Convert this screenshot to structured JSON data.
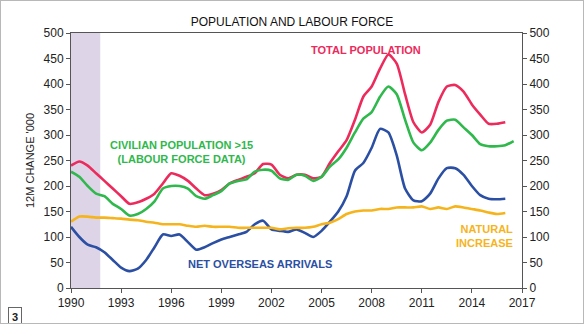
{
  "chart_data": {
    "type": "line",
    "title": "POPULATION AND LABOUR FORCE",
    "y_label": "12M CHANGE '000",
    "annotations": [
      "3"
    ],
    "x": [
      1990,
      1990.5,
      1991,
      1991.5,
      1992,
      1992.5,
      1993,
      1993.5,
      1994,
      1994.5,
      1995,
      1995.5,
      1996,
      1996.5,
      1997,
      1997.5,
      1998,
      1998.5,
      1999,
      1999.5,
      2000,
      2000.5,
      2001,
      2001.5,
      2002,
      2002.5,
      2003,
      2003.5,
      2004,
      2004.5,
      2005,
      2005.5,
      2006,
      2006.5,
      2007,
      2007.5,
      2008,
      2008.5,
      2009,
      2009.5,
      2010,
      2010.5,
      2011,
      2011.5,
      2012,
      2012.5,
      2013,
      2013.5,
      2014,
      2014.5,
      2015,
      2015.5,
      2016,
      2016.5
    ],
    "series": [
      {
        "name": "TOTAL POPULATION",
        "color": "#ec2a5c",
        "values": [
          240,
          248,
          240,
          225,
          210,
          195,
          180,
          165,
          168,
          175,
          185,
          205,
          225,
          220,
          210,
          195,
          182,
          185,
          192,
          205,
          212,
          218,
          225,
          243,
          242,
          222,
          215,
          222,
          222,
          215,
          218,
          245,
          268,
          290,
          330,
          375,
          395,
          430,
          458,
          440,
          380,
          325,
          305,
          320,
          365,
          395,
          398,
          385,
          360,
          340,
          322,
          322,
          325,
          null
        ]
      },
      {
        "name": "CIVILIAN POPULATION >15\n(LABOUR FORCE DATA)",
        "color": "#2fb84c",
        "values": [
          228,
          218,
          200,
          185,
          180,
          165,
          155,
          142,
          145,
          155,
          170,
          195,
          200,
          200,
          195,
          180,
          175,
          182,
          190,
          205,
          210,
          213,
          228,
          232,
          230,
          215,
          212,
          222,
          220,
          210,
          218,
          238,
          252,
          275,
          305,
          332,
          345,
          375,
          395,
          380,
          330,
          285,
          270,
          285,
          310,
          328,
          330,
          315,
          300,
          282,
          278,
          278,
          280,
          288
        ]
      },
      {
        "name": "NET OVERSEAS ARRIVALS",
        "color": "#2b4fa3",
        "values": [
          120,
          100,
          85,
          80,
          70,
          55,
          40,
          33,
          38,
          55,
          80,
          105,
          102,
          105,
          90,
          75,
          80,
          88,
          95,
          100,
          105,
          110,
          125,
          132,
          115,
          112,
          110,
          115,
          108,
          100,
          112,
          130,
          150,
          180,
          230,
          245,
          275,
          312,
          305,
          260,
          195,
          172,
          170,
          185,
          215,
          235,
          235,
          222,
          200,
          182,
          175,
          174,
          175,
          null
        ]
      },
      {
        "name": "NATURAL\nINCREASE",
        "color": "#f6b41c",
        "values": [
          130,
          140,
          140,
          138,
          138,
          137,
          136,
          134,
          133,
          130,
          128,
          125,
          125,
          125,
          122,
          120,
          122,
          120,
          120,
          120,
          118,
          118,
          118,
          118,
          118,
          115,
          117,
          118,
          118,
          120,
          125,
          128,
          135,
          145,
          150,
          152,
          152,
          155,
          155,
          158,
          158,
          158,
          160,
          155,
          158,
          155,
          160,
          158,
          155,
          152,
          148,
          145,
          147,
          null
        ]
      }
    ],
    "shaded_regions": [
      [
        1990,
        1991.75
      ]
    ],
    "xlim": [
      1990,
      2017
    ],
    "xticks": [
      1990,
      1993,
      1996,
      1999,
      2002,
      2005,
      2008,
      2011,
      2014,
      2017
    ],
    "ylim": [
      0,
      500
    ],
    "yticks": [
      0,
      50,
      100,
      150,
      200,
      250,
      300,
      350,
      400,
      450,
      500
    ],
    "y2lim": [
      0,
      500
    ],
    "y2ticks": [
      0,
      50,
      100,
      150,
      200,
      250,
      300,
      350,
      400,
      450,
      500
    ],
    "grid": false
  }
}
